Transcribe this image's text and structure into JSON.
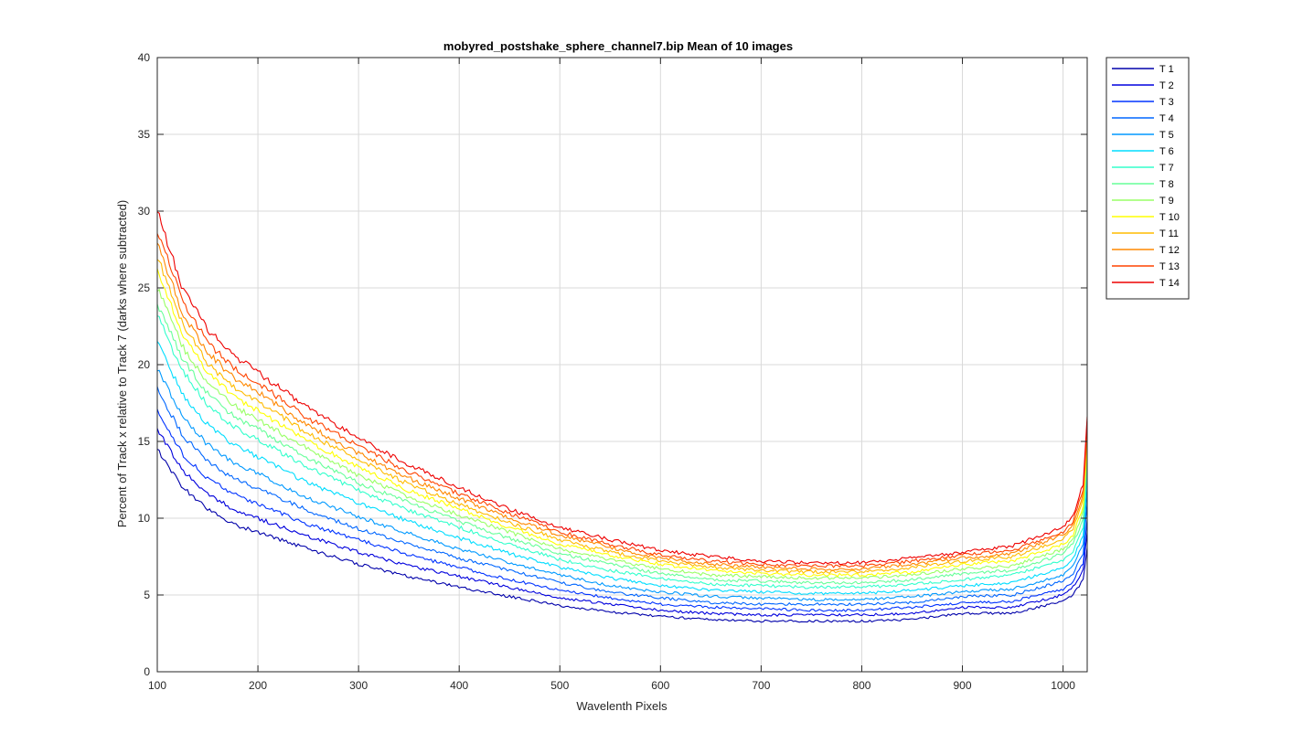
{
  "chart_data": {
    "type": "line",
    "title": "mobyred_postshake_sphere_channel7.bip  Mean of 10 images",
    "xlabel": "Wavelenth Pixels",
    "ylabel": "Percent of Track x relative to Track 7 (darks where subtracted)",
    "xlim": [
      100,
      1024
    ],
    "ylim": [
      0,
      40
    ],
    "xticks": [
      100,
      200,
      300,
      400,
      500,
      600,
      700,
      800,
      900,
      1000
    ],
    "yticks": [
      0,
      5,
      10,
      15,
      20,
      25,
      30,
      35,
      40
    ],
    "grid": true,
    "legend_position": "outside-top-right",
    "x": [
      100,
      125,
      150,
      175,
      200,
      250,
      300,
      350,
      400,
      450,
      500,
      550,
      600,
      650,
      700,
      750,
      800,
      850,
      900,
      950,
      1000,
      1010,
      1020,
      1024
    ],
    "series": [
      {
        "name": "T 1",
        "color": "#0000aa",
        "values": [
          14.5,
          12.0,
          10.6,
          9.6,
          9.1,
          8.0,
          7.0,
          6.2,
          5.5,
          4.9,
          4.3,
          3.9,
          3.6,
          3.4,
          3.3,
          3.3,
          3.3,
          3.4,
          3.8,
          3.8,
          4.6,
          5.0,
          6.0,
          8.0
        ]
      },
      {
        "name": "T 2",
        "color": "#0000dd",
        "values": [
          15.8,
          13.1,
          11.6,
          10.6,
          10.0,
          8.8,
          7.8,
          6.9,
          6.2,
          5.5,
          4.8,
          4.4,
          4.0,
          3.8,
          3.7,
          3.7,
          3.7,
          3.8,
          4.2,
          4.2,
          5.0,
          5.5,
          6.6,
          9.0
        ]
      },
      {
        "name": "T 3",
        "color": "#0033ff",
        "values": [
          17.0,
          14.2,
          12.6,
          11.6,
          10.9,
          9.6,
          8.6,
          7.6,
          6.8,
          6.0,
          5.3,
          4.8,
          4.4,
          4.2,
          4.1,
          4.0,
          4.0,
          4.2,
          4.5,
          4.6,
          5.4,
          5.9,
          7.1,
          10.0
        ]
      },
      {
        "name": "T 4",
        "color": "#0066ff",
        "values": [
          18.4,
          15.4,
          13.7,
          12.6,
          11.9,
          10.5,
          9.3,
          8.3,
          7.4,
          6.6,
          5.8,
          5.2,
          4.8,
          4.5,
          4.4,
          4.4,
          4.4,
          4.5,
          4.9,
          5.0,
          5.9,
          6.4,
          7.7,
          11.0
        ]
      },
      {
        "name": "T 5",
        "color": "#0099ff",
        "values": [
          19.8,
          16.6,
          14.8,
          13.6,
          12.9,
          11.3,
          10.1,
          9.0,
          8.0,
          7.1,
          6.3,
          5.6,
          5.2,
          4.9,
          4.8,
          4.7,
          4.7,
          4.9,
          5.2,
          5.4,
          6.3,
          6.9,
          8.3,
          12.0
        ]
      },
      {
        "name": "T 6",
        "color": "#00ddff",
        "values": [
          21.5,
          18.1,
          16.1,
          14.8,
          14.0,
          12.3,
          11.0,
          9.8,
          8.7,
          7.7,
          6.8,
          6.1,
          5.6,
          5.3,
          5.2,
          5.1,
          5.1,
          5.3,
          5.6,
          5.8,
          6.8,
          7.4,
          8.9,
          12.8
        ]
      },
      {
        "name": "T 7",
        "color": "#33ffcc",
        "values": [
          23.2,
          19.6,
          17.4,
          16.0,
          15.1,
          13.3,
          11.8,
          10.5,
          9.4,
          8.3,
          7.3,
          6.6,
          6.1,
          5.7,
          5.6,
          5.5,
          5.5,
          5.7,
          6.0,
          6.3,
          7.3,
          7.9,
          9.5,
          13.5
        ]
      },
      {
        "name": "T 8",
        "color": "#66ff99",
        "values": [
          24.0,
          20.4,
          18.1,
          16.7,
          15.8,
          13.9,
          12.3,
          11.0,
          9.8,
          8.7,
          7.7,
          7.0,
          6.4,
          6.0,
          5.9,
          5.8,
          5.8,
          6.0,
          6.4,
          6.6,
          7.7,
          8.3,
          10.0,
          14.0
        ]
      },
      {
        "name": "T 9",
        "color": "#99ff66",
        "values": [
          25.0,
          21.2,
          18.8,
          17.4,
          16.4,
          14.5,
          12.8,
          11.4,
          10.2,
          9.1,
          8.0,
          7.3,
          6.7,
          6.3,
          6.2,
          6.1,
          6.1,
          6.3,
          6.7,
          6.9,
          8.0,
          8.6,
          10.4,
          14.4
        ]
      },
      {
        "name": "T 10",
        "color": "#ffff00",
        "values": [
          26.2,
          22.0,
          19.5,
          18.0,
          17.0,
          15.0,
          13.3,
          11.8,
          10.6,
          9.4,
          8.3,
          7.6,
          7.0,
          6.6,
          6.4,
          6.3,
          6.3,
          6.5,
          7.0,
          7.2,
          8.3,
          8.9,
          10.8,
          14.8
        ]
      },
      {
        "name": "T 11",
        "color": "#ffbb00",
        "values": [
          27.1,
          22.7,
          20.1,
          18.6,
          17.6,
          15.5,
          13.8,
          12.2,
          10.9,
          9.7,
          8.6,
          7.8,
          7.2,
          6.8,
          6.6,
          6.5,
          6.5,
          6.8,
          7.2,
          7.5,
          8.6,
          9.3,
          11.2,
          15.3
        ]
      },
      {
        "name": "T 12",
        "color": "#ff8800",
        "values": [
          27.9,
          23.4,
          20.8,
          19.2,
          18.2,
          16.0,
          14.2,
          12.6,
          11.3,
          10.0,
          8.9,
          8.1,
          7.4,
          7.0,
          6.8,
          6.7,
          6.7,
          7.0,
          7.4,
          7.7,
          8.9,
          9.6,
          11.5,
          15.8
        ]
      },
      {
        "name": "T 13",
        "color": "#ff4400",
        "values": [
          28.8,
          24.2,
          21.5,
          19.8,
          18.8,
          16.5,
          14.7,
          13.0,
          11.6,
          10.3,
          9.1,
          8.3,
          7.6,
          7.2,
          7.0,
          6.9,
          6.9,
          7.2,
          7.6,
          7.9,
          9.1,
          9.8,
          11.8,
          16.2
        ]
      },
      {
        "name": "T 14",
        "color": "#ee0000",
        "values": [
          30.0,
          25.0,
          22.3,
          20.6,
          19.5,
          17.2,
          15.2,
          13.5,
          12.0,
          10.6,
          9.4,
          8.6,
          7.9,
          7.5,
          7.2,
          7.1,
          7.1,
          7.4,
          7.8,
          8.2,
          9.4,
          10.2,
          12.2,
          16.6
        ]
      }
    ]
  }
}
